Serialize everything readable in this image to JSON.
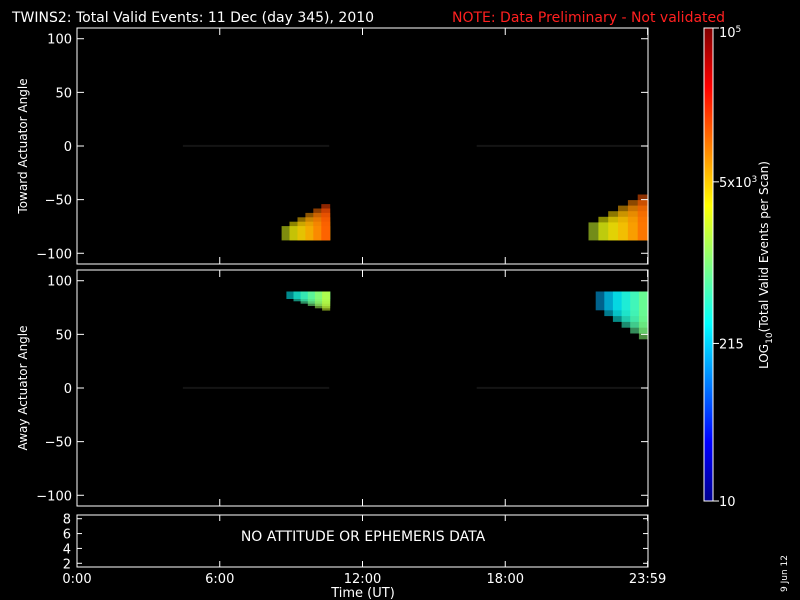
{
  "page": {
    "title": "TWINS2: Total Valid Events: 11 Dec (day 345), 2010",
    "note": "NOTE: Data Preliminary - Not validated",
    "date_stamp": "9 Jun 12",
    "colors": {
      "background": "#000000",
      "text": "#ffffff",
      "note": "#ff2020",
      "axes": "#ffffff"
    }
  },
  "chart_data": [
    {
      "type": "heatmap",
      "ylabel": "Toward Actuator Angle",
      "xlim": [
        0,
        24
      ],
      "ylim": [
        -110,
        110
      ],
      "yticks": [
        -100,
        -50,
        0,
        50,
        100
      ],
      "data_y_range": [
        -88,
        90
      ],
      "segments": [
        {
          "x_range": [
            4.45,
            10.6
          ],
          "profile": [
            [
              4.45,
              0.84
            ],
            [
              4.85,
              0.8
            ],
            [
              5.25,
              0.7
            ],
            [
              6.2,
              0.64
            ],
            [
              7.6,
              0.6
            ],
            [
              8.6,
              0.55
            ],
            [
              9.3,
              0.46
            ],
            [
              9.7,
              0.4
            ],
            [
              10.0,
              0.37
            ],
            [
              10.6,
              0.4
            ]
          ],
          "hot_corner": {
            "x_range": [
              8.6,
              10.6
            ],
            "y_range": [
              -88,
              -50
            ],
            "value": 0.85
          }
        },
        {
          "x_range": [
            16.8,
            23.98
          ],
          "profile": [
            [
              16.8,
              0.64
            ],
            [
              17.1,
              0.6
            ],
            [
              17.4,
              0.5
            ],
            [
              17.8,
              0.38
            ],
            [
              18.3,
              0.28
            ],
            [
              19.0,
              0.22
            ],
            [
              20.0,
              0.2
            ],
            [
              22.0,
              0.18
            ],
            [
              23.98,
              0.2
            ]
          ],
          "hot_corner": {
            "x_range": [
              21.5,
              23.98
            ],
            "y_range": [
              -88,
              -40
            ],
            "value": 0.83
          }
        }
      ]
    },
    {
      "type": "heatmap",
      "ylabel": "Away Actuator Angle",
      "xlim": [
        0,
        24
      ],
      "ylim": [
        -110,
        110
      ],
      "yticks": [
        -100,
        -50,
        0,
        50,
        100
      ],
      "data_y_range": [
        -88,
        90
      ],
      "segments": [
        {
          "x_range": [
            4.45,
            10.6
          ],
          "profile": [
            [
              4.45,
              0.7
            ],
            [
              4.85,
              0.66
            ],
            [
              5.6,
              0.6
            ],
            [
              6.5,
              0.56
            ],
            [
              7.6,
              0.5
            ],
            [
              8.6,
              0.45
            ],
            [
              9.3,
              0.4
            ],
            [
              9.8,
              0.33
            ],
            [
              10.2,
              0.36
            ],
            [
              10.6,
              0.4
            ]
          ],
          "hot_corner": {
            "x_range": [
              8.8,
              10.6
            ],
            "y_range": [
              70,
              90
            ],
            "value": 0.62
          }
        },
        {
          "x_range": [
            16.8,
            23.98
          ],
          "profile": [
            [
              16.8,
              0.5
            ],
            [
              17.2,
              0.42
            ],
            [
              17.6,
              0.3
            ],
            [
              18.2,
              0.22
            ],
            [
              19.0,
              0.17
            ],
            [
              20.0,
              0.13
            ],
            [
              22.0,
              0.14
            ],
            [
              23.98,
              0.2
            ]
          ],
          "hot_corner": {
            "x_range": [
              21.8,
              23.98
            ],
            "y_range": [
              40,
              90
            ],
            "value": 0.55
          }
        }
      ]
    },
    {
      "type": "line",
      "message": "NO ATTITUDE OR EPHEMERIS DATA",
      "xlim": [
        0,
        24
      ],
      "ylim": [
        1.5,
        8.5
      ],
      "yticks": [
        2,
        4,
        6,
        8
      ],
      "xticks": [
        0,
        6,
        12,
        18,
        23.983
      ],
      "xtick_labels": [
        "0:00",
        "6:00",
        "12:00",
        "18:00",
        "23:59"
      ],
      "xlabel": "Time (UT)"
    }
  ],
  "colorbar": {
    "label": "LOG10(Total Valid Events per Scan)",
    "label_parts": [
      "LOG",
      "10",
      "(Total Valid Events per Scan)"
    ],
    "scale": "log",
    "range": [
      10,
      100000
    ],
    "ticks": [
      {
        "value": 10,
        "text": "10",
        "base": "10",
        "exp": ""
      },
      {
        "value": 215,
        "text": "215",
        "base": "215",
        "exp": ""
      },
      {
        "value": 5000,
        "text": "5x10^3",
        "base": "5x10",
        "exp": "3"
      },
      {
        "value": 100000,
        "text": "10^5",
        "base": "10",
        "exp": "5"
      }
    ]
  }
}
